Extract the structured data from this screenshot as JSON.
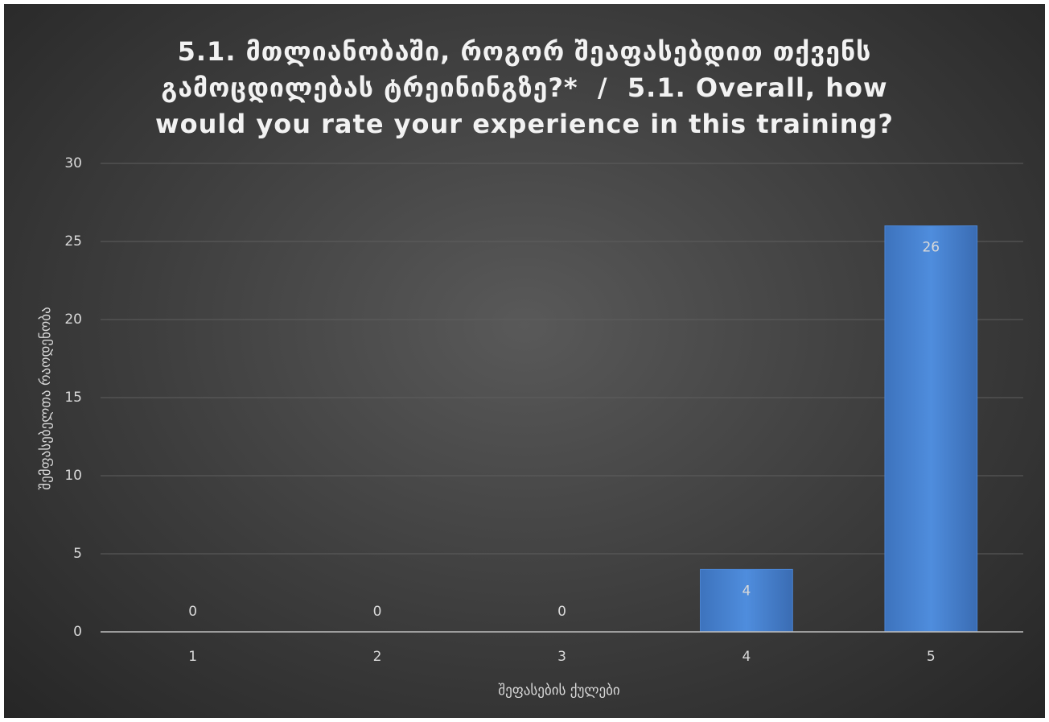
{
  "chart_data": {
    "type": "bar",
    "title": "5.1. მთლიანობაში, როგორ შეაფასებდით თქვენს გამოცდილებას ტრეინინგზე?*  /  5.1. Overall, how would you rate your experience in this training?",
    "x_label": "შეფასების ქულები",
    "y_label": "შემფასებელთა რაოდენობა",
    "categories": [
      "1",
      "2",
      "3",
      "4",
      "5"
    ],
    "values": [
      0,
      0,
      0,
      4,
      26
    ],
    "color": "#4a86d6",
    "ylim": [
      0,
      30
    ],
    "yticks": [
      0,
      5,
      10,
      15,
      20,
      25,
      30
    ],
    "grid": true,
    "data_labels": true
  }
}
